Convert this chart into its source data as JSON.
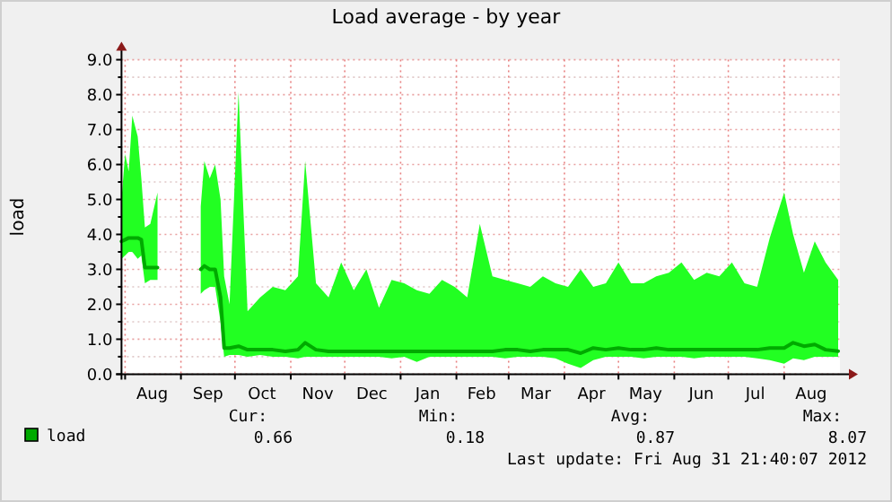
{
  "chart_data": {
    "type": "line",
    "title": "Load average - by year",
    "ylabel": "load",
    "xlim": [
      "2011-07-30",
      "2012-09-01"
    ],
    "xticks": [
      {
        "value": "2011-08-01",
        "label": null
      },
      {
        "value": "2011-08-16",
        "label": "Aug"
      },
      {
        "value": "2011-09-01",
        "label": null
      },
      {
        "value": "2011-09-16",
        "label": "Sep"
      },
      {
        "value": "2011-10-01",
        "label": null
      },
      {
        "value": "2011-10-16",
        "label": "Oct"
      },
      {
        "value": "2011-11-01",
        "label": null
      },
      {
        "value": "2011-11-16",
        "label": "Nov"
      },
      {
        "value": "2011-12-01",
        "label": null
      },
      {
        "value": "2011-12-16",
        "label": "Dec"
      },
      {
        "value": "2012-01-01",
        "label": null
      },
      {
        "value": "2012-01-16",
        "label": "Jan"
      },
      {
        "value": "2012-02-01",
        "label": null
      },
      {
        "value": "2012-02-15",
        "label": "Feb"
      },
      {
        "value": "2012-03-01",
        "label": null
      },
      {
        "value": "2012-03-16",
        "label": "Mar"
      },
      {
        "value": "2012-04-01",
        "label": null
      },
      {
        "value": "2012-04-16",
        "label": "Apr"
      },
      {
        "value": "2012-05-01",
        "label": null
      },
      {
        "value": "2012-05-16",
        "label": "May"
      },
      {
        "value": "2012-06-01",
        "label": null
      },
      {
        "value": "2012-06-16",
        "label": "Jun"
      },
      {
        "value": "2012-07-01",
        "label": null
      },
      {
        "value": "2012-07-16",
        "label": "Jul"
      },
      {
        "value": "2012-08-01",
        "label": null
      },
      {
        "value": "2012-08-16",
        "label": "Aug"
      }
    ],
    "ylim": [
      0,
      9
    ],
    "yticks": [
      {
        "value": 0,
        "label": "0.0"
      },
      {
        "value": 0.5,
        "label": null
      },
      {
        "value": 1,
        "label": "1.0"
      },
      {
        "value": 1.5,
        "label": null
      },
      {
        "value": 2,
        "label": "2.0"
      },
      {
        "value": 2.5,
        "label": null
      },
      {
        "value": 3,
        "label": "3.0"
      },
      {
        "value": 3.5,
        "label": null
      },
      {
        "value": 4,
        "label": "4.0"
      },
      {
        "value": 4.5,
        "label": null
      },
      {
        "value": 5,
        "label": "5.0"
      },
      {
        "value": 5.5,
        "label": null
      },
      {
        "value": 6,
        "label": "6.0"
      },
      {
        "value": 6.5,
        "label": null
      },
      {
        "value": 7,
        "label": "7.0"
      },
      {
        "value": 7.5,
        "label": null
      },
      {
        "value": 8,
        "label": "8.0"
      },
      {
        "value": 8.5,
        "label": null
      },
      {
        "value": 9,
        "label": "9.0"
      }
    ],
    "grid": true,
    "legend": "bottom",
    "annotations": [
      "Cur:",
      "0.66",
      "Min:",
      "0.18",
      "Avg:",
      "0.87",
      "Max:",
      "8.07",
      "Last update: Fri Aug 31 21:40:07 2012"
    ],
    "series": [
      {
        "name": "load",
        "color": "#00aa00",
        "x": [
          "2011-07-30",
          "2011-08-01",
          "2011-08-03",
          "2011-08-05",
          "2011-08-08",
          "2011-08-10",
          "2011-08-12",
          "2011-08-15",
          "2011-08-19",
          "2011-08-20",
          "2011-09-12",
          "2011-09-14",
          "2011-09-17",
          "2011-09-20",
          "2011-09-23",
          "2011-09-25",
          "2011-09-28",
          "2011-10-03",
          "2011-10-08",
          "2011-10-15",
          "2011-10-22",
          "2011-10-29",
          "2011-11-05",
          "2011-11-09",
          "2011-11-15",
          "2011-11-22",
          "2011-11-29",
          "2011-12-06",
          "2011-12-13",
          "2011-12-20",
          "2011-12-27",
          "2012-01-03",
          "2012-01-10",
          "2012-01-17",
          "2012-01-24",
          "2012-01-31",
          "2012-02-07",
          "2012-02-14",
          "2012-02-21",
          "2012-02-28",
          "2012-03-06",
          "2012-03-13",
          "2012-03-20",
          "2012-03-27",
          "2012-04-03",
          "2012-04-10",
          "2012-04-17",
          "2012-04-24",
          "2012-05-01",
          "2012-05-08",
          "2012-05-15",
          "2012-05-22",
          "2012-05-29",
          "2012-06-05",
          "2012-06-12",
          "2012-06-19",
          "2012-06-26",
          "2012-07-03",
          "2012-07-10",
          "2012-07-17",
          "2012-07-24",
          "2012-08-01",
          "2012-08-06",
          "2012-08-12",
          "2012-08-18",
          "2012-08-24",
          "2012-08-31"
        ],
        "values": [
          3.8,
          3.85,
          3.9,
          3.9,
          3.9,
          3.85,
          3.05,
          3.05,
          3.05,
          null,
          3.0,
          3.1,
          3.0,
          3.0,
          2.2,
          0.75,
          0.75,
          0.8,
          0.7,
          0.7,
          0.7,
          0.65,
          0.7,
          0.9,
          0.7,
          0.65,
          0.65,
          0.65,
          0.65,
          0.65,
          0.65,
          0.65,
          0.65,
          0.65,
          0.65,
          0.65,
          0.65,
          0.65,
          0.65,
          0.7,
          0.7,
          0.65,
          0.7,
          0.7,
          0.7,
          0.6,
          0.75,
          0.7,
          0.75,
          0.7,
          0.7,
          0.75,
          0.7,
          0.7,
          0.7,
          0.7,
          0.7,
          0.7,
          0.7,
          0.7,
          0.75,
          0.75,
          0.9,
          0.8,
          0.85,
          0.7,
          0.66
        ],
        "lower": [
          3.3,
          3.4,
          3.5,
          3.5,
          3.3,
          3.4,
          2.6,
          2.7,
          2.7,
          null,
          2.3,
          2.4,
          2.5,
          2.5,
          1.5,
          0.5,
          0.55,
          0.55,
          0.5,
          0.55,
          0.5,
          0.5,
          0.45,
          0.5,
          0.5,
          0.5,
          0.5,
          0.5,
          0.5,
          0.5,
          0.45,
          0.5,
          0.35,
          0.5,
          0.5,
          0.5,
          0.5,
          0.5,
          0.5,
          0.45,
          0.5,
          0.5,
          0.5,
          0.45,
          0.3,
          0.18,
          0.4,
          0.5,
          0.5,
          0.5,
          0.45,
          0.5,
          0.5,
          0.5,
          0.45,
          0.5,
          0.5,
          0.5,
          0.5,
          0.45,
          0.4,
          0.3,
          0.45,
          0.4,
          0.5,
          0.5,
          0.5
        ],
        "upper": [
          5.0,
          6.3,
          5.8,
          7.4,
          6.8,
          5.6,
          4.2,
          4.3,
          5.2,
          null,
          4.8,
          6.1,
          5.6,
          6.0,
          5.0,
          2.8,
          2.0,
          8.07,
          1.8,
          2.2,
          2.5,
          2.4,
          2.8,
          6.1,
          2.6,
          2.2,
          3.2,
          2.4,
          3.0,
          1.9,
          2.7,
          2.6,
          2.4,
          2.3,
          2.7,
          2.5,
          2.2,
          4.3,
          2.8,
          2.7,
          2.6,
          2.5,
          2.8,
          2.6,
          2.5,
          3.0,
          2.5,
          2.6,
          3.2,
          2.6,
          2.6,
          2.8,
          2.9,
          3.2,
          2.7,
          2.9,
          2.8,
          3.2,
          2.6,
          2.5,
          3.9,
          5.2,
          4.0,
          2.9,
          3.8,
          3.2,
          2.7
        ]
      }
    ]
  }
}
